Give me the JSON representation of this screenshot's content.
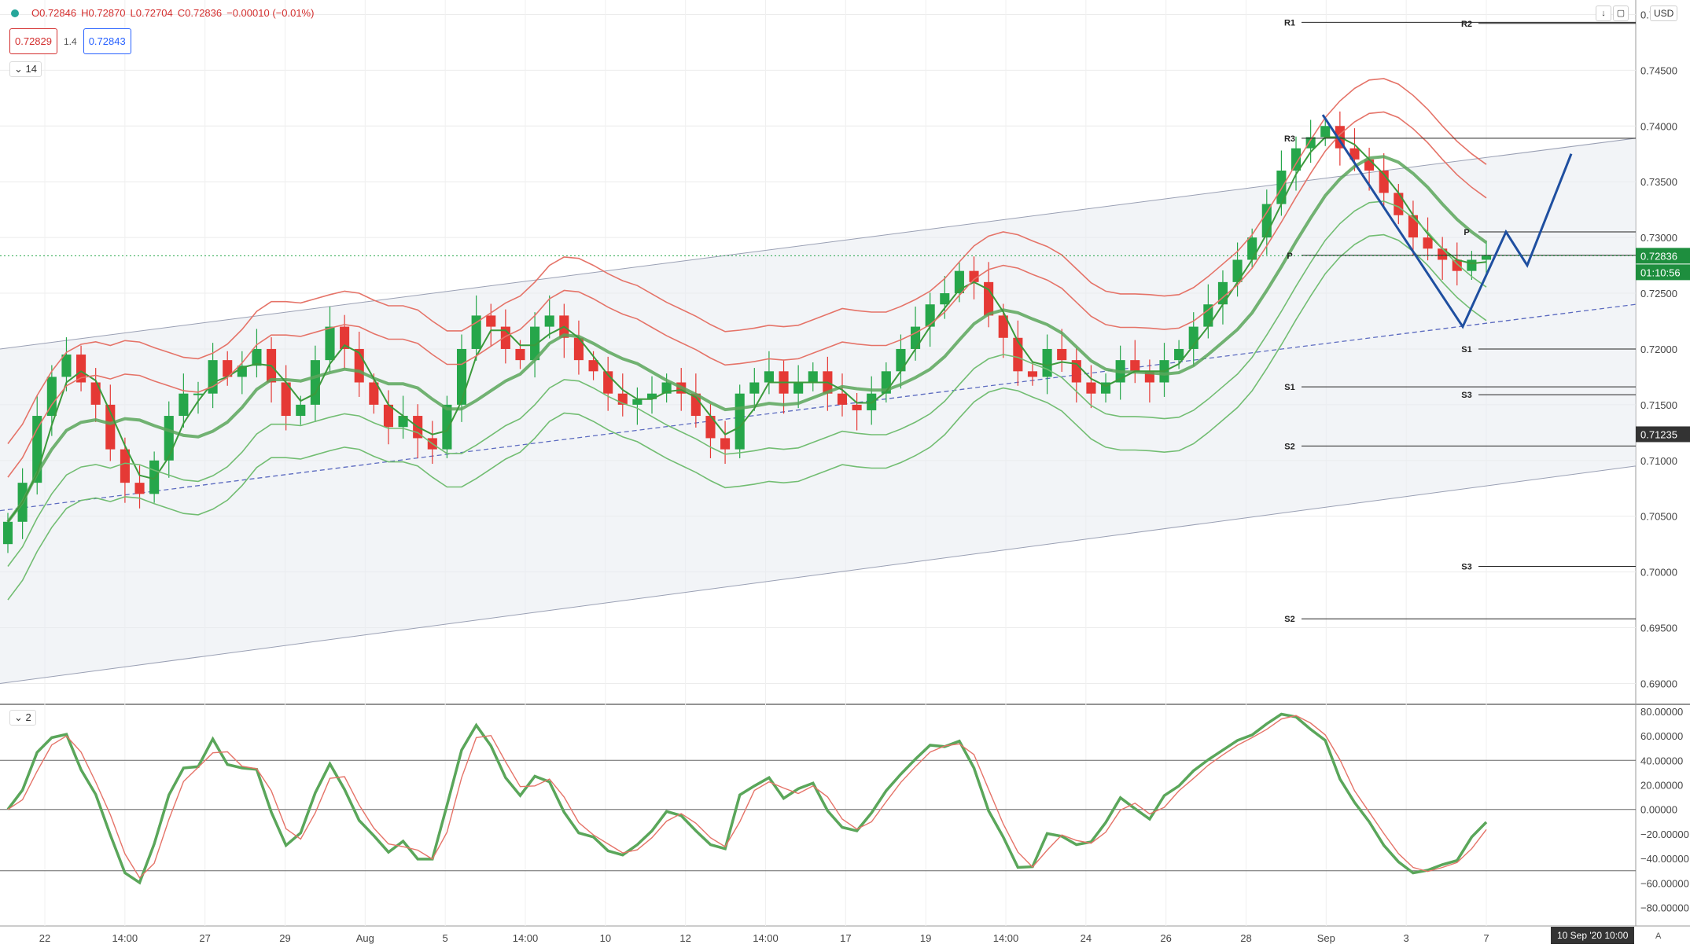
{
  "header": {
    "ohlc": {
      "open": "O0.72846",
      "high": "H0.72870",
      "low": "L0.72704",
      "close": "C0.72836",
      "change": "−0.00010 (−0.01%)"
    },
    "bid": "0.72829",
    "spread": "1.4",
    "ask": "0.72843",
    "indicator_main_count": "14",
    "indicator_osc_count": "2",
    "currency": "USD",
    "cursor_date": "10 Sep '20  10:00",
    "auto_label": "A",
    "colors": {
      "up": "#26a64a",
      "down": "#e53935",
      "ask": "#2962ff"
    }
  },
  "chart_data": [
    {
      "type": "candlestick",
      "title": "",
      "x_ticks": [
        "22",
        "14:00",
        "27",
        "29",
        "Aug",
        "5",
        "14:00",
        "10",
        "12",
        "14:00",
        "17",
        "19",
        "14:00",
        "24",
        "26",
        "28",
        "Sep",
        "3",
        "7"
      ],
      "y_ticks": [
        "0.75000",
        "0.74500",
        "0.74000",
        "0.73500",
        "0.73000",
        "0.72500",
        "0.72000",
        "0.71500",
        "0.71000",
        "0.70500",
        "0.70000",
        "0.69500",
        "0.69000"
      ],
      "ylim": [
        0.6882,
        0.7513
      ],
      "price_badges": {
        "last": "0.72836",
        "countdown": "01:10:56",
        "crosshair": "0.71235"
      },
      "last_price": 0.72836,
      "crosshair_price": 0.71235,
      "candles_close_approx": [
        0.7045,
        0.708,
        0.714,
        0.7175,
        0.7195,
        0.717,
        0.715,
        0.711,
        0.708,
        0.707,
        0.71,
        0.714,
        0.716,
        0.716,
        0.719,
        0.7175,
        0.7185,
        0.72,
        0.717,
        0.714,
        0.715,
        0.719,
        0.722,
        0.72,
        0.717,
        0.715,
        0.713,
        0.714,
        0.712,
        0.711,
        0.715,
        0.72,
        0.723,
        0.722,
        0.72,
        0.719,
        0.722,
        0.723,
        0.721,
        0.719,
        0.718,
        0.716,
        0.715,
        0.7155,
        0.716,
        0.717,
        0.716,
        0.714,
        0.712,
        0.711,
        0.716,
        0.717,
        0.718,
        0.716,
        0.717,
        0.718,
        0.716,
        0.715,
        0.7145,
        0.716,
        0.718,
        0.72,
        0.722,
        0.724,
        0.725,
        0.727,
        0.726,
        0.723,
        0.721,
        0.718,
        0.7175,
        0.72,
        0.719,
        0.717,
        0.716,
        0.717,
        0.719,
        0.718,
        0.717,
        0.719,
        0.72,
        0.722,
        0.724,
        0.726,
        0.728,
        0.73,
        0.733,
        0.736,
        0.738,
        0.739,
        0.74,
        0.738,
        0.737,
        0.736,
        0.734,
        0.732,
        0.73,
        0.729,
        0.728,
        0.727,
        0.728,
        0.7284
      ],
      "pivot_levels": [
        {
          "label": "R1",
          "value": 0.7493
        },
        {
          "label": "R2",
          "value": 0.7492
        },
        {
          "label": "R3",
          "value": 0.7389
        },
        {
          "label": "P",
          "value": 0.7305
        },
        {
          "label": "P",
          "value": 0.7284
        },
        {
          "label": "S1",
          "value": 0.72
        },
        {
          "label": "S1",
          "value": 0.7166
        },
        {
          "label": "S3",
          "value": 0.7159
        },
        {
          "label": "S2",
          "value": 0.7113
        },
        {
          "label": "S3",
          "value": 0.7005
        },
        {
          "label": "S2",
          "value": 0.6958
        }
      ]
    },
    {
      "type": "line",
      "title": "",
      "y_ticks": [
        "80.00000",
        "60.00000",
        "40.00000",
        "20.00000",
        "0.00000",
        "−20.00000",
        "−40.00000",
        "−60.00000",
        "−80.00000"
      ],
      "ylim": [
        -95,
        85
      ],
      "levels": [
        40,
        0,
        -50
      ]
    }
  ]
}
